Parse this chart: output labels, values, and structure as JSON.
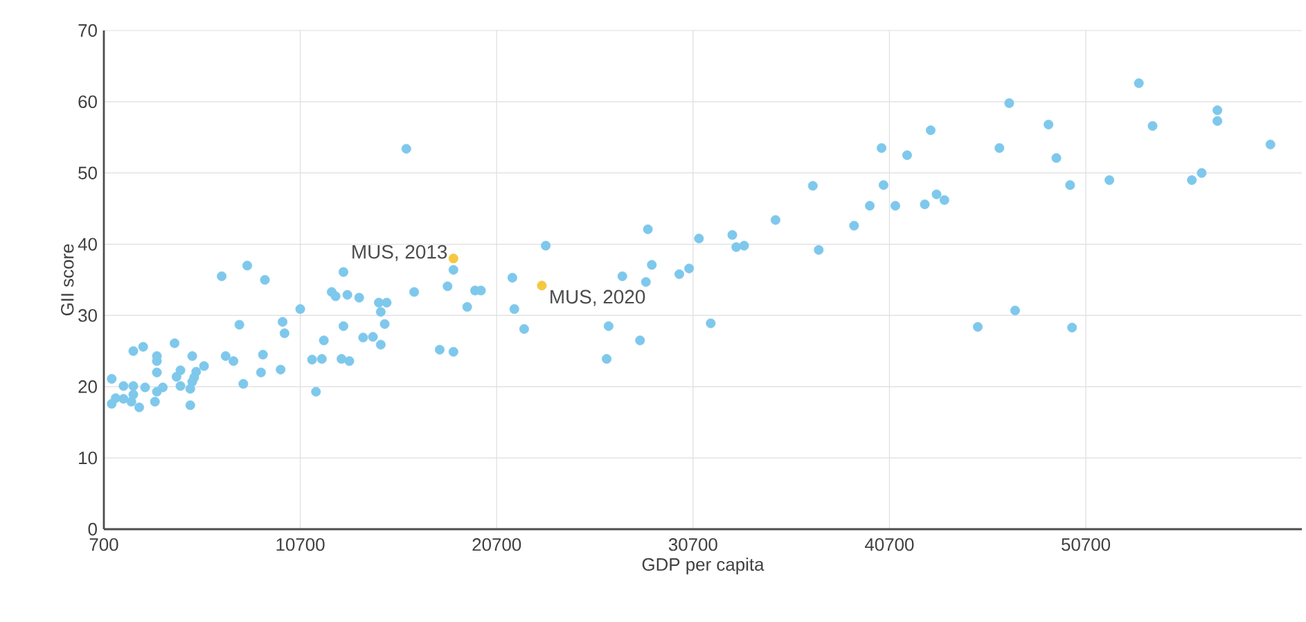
{
  "chart_data": {
    "type": "scatter",
    "xlabel": "GDP per capita",
    "ylabel": "GII score",
    "xlim": [
      700,
      61700
    ],
    "ylim": [
      0,
      70
    ],
    "xticks": [
      700,
      10700,
      20700,
      30700,
      40700,
      50700
    ],
    "yticks": [
      0,
      10,
      20,
      30,
      40,
      50,
      60,
      70
    ],
    "grid": true,
    "series": [
      {
        "color": "#7ec8ec",
        "x": [
          6700,
          8000,
          8900,
          10700,
          9800,
          9900,
          7600,
          2200,
          2700,
          4300,
          3400,
          3400,
          5200,
          3400,
          6900,
          7300,
          8800,
          8700,
          9700,
          5800,
          5400,
          5300,
          4600,
          4400,
          5200,
          4600,
          5100,
          3700,
          3400,
          7800,
          1100,
          1700,
          2200,
          2800,
          2200,
          1300,
          1700,
          1100,
          2100,
          2500,
          3300,
          5100,
          16100,
          18500,
          23200,
          12900,
          21500,
          18200,
          16500,
          12300,
          12500,
          13100,
          13700,
          14700,
          15100,
          14800,
          15000,
          12900,
          19600,
          19900,
          19200,
          21600,
          22100,
          11900,
          13900,
          14400,
          14800,
          11300,
          11800,
          12800,
          13200,
          17800,
          18500,
          11500,
          28400,
          31000,
          32700,
          32900,
          33300,
          34900,
          28600,
          27100,
          28300,
          30000,
          30500,
          26400,
          28000,
          26300,
          31600,
          42800,
          40300,
          41600,
          46300,
          48800,
          49200,
          36800,
          40400,
          39700,
          41000,
          42500,
          43100,
          43500,
          38900,
          37100,
          47100,
          45200,
          53400,
          46800,
          49900,
          51900,
          54100,
          57400,
          57400,
          60100,
          56100,
          56600,
          50000
        ],
        "values": [
          35.5,
          37.0,
          35.0,
          30.9,
          29.1,
          27.5,
          28.7,
          25.0,
          25.6,
          26.1,
          24.3,
          23.6,
          24.3,
          22.0,
          24.3,
          23.6,
          24.5,
          22.0,
          22.4,
          22.9,
          22.1,
          21.3,
          22.3,
          21.4,
          20.7,
          20.1,
          19.7,
          19.9,
          19.3,
          20.4,
          21.1,
          20.1,
          20.1,
          19.9,
          18.9,
          18.4,
          18.3,
          17.6,
          17.9,
          17.1,
          17.9,
          17.4,
          53.4,
          36.4,
          39.8,
          36.1,
          35.3,
          34.1,
          33.3,
          33.3,
          32.7,
          32.9,
          32.5,
          31.8,
          31.8,
          30.5,
          28.8,
          28.5,
          33.5,
          33.5,
          31.2,
          30.9,
          28.1,
          26.5,
          26.9,
          27.0,
          25.9,
          23.8,
          23.9,
          23.9,
          23.6,
          25.2,
          24.9,
          19.3,
          42.1,
          40.8,
          41.3,
          39.6,
          39.8,
          43.4,
          37.1,
          35.5,
          34.7,
          35.8,
          36.6,
          28.5,
          26.5,
          23.9,
          28.9,
          56.0,
          53.5,
          52.5,
          53.5,
          56.8,
          52.1,
          48.2,
          48.3,
          45.4,
          45.4,
          45.6,
          47.0,
          46.2,
          42.6,
          39.2,
          30.7,
          28.4,
          62.6,
          59.8,
          48.3,
          49.0,
          56.6,
          58.8,
          57.3,
          54.0,
          49.0,
          50.0,
          28.3
        ]
      },
      {
        "color": "#f5c842",
        "x": [
          18500,
          23000
        ],
        "values": [
          38.0,
          34.2
        ]
      }
    ],
    "annotations": [
      {
        "text": "MUS, 2013",
        "x": 18500,
        "y": 38.0
      },
      {
        "text": "MUS, 2020",
        "x": 23000,
        "y": 34.2
      }
    ]
  }
}
